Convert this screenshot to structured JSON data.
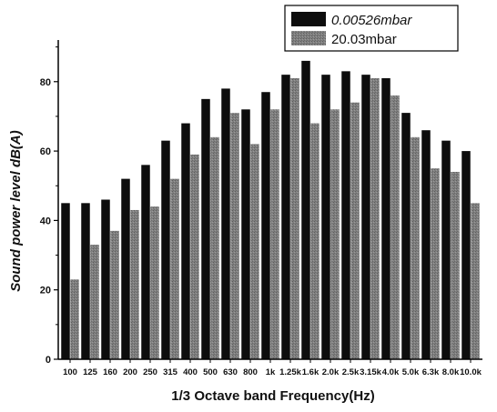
{
  "chart_data": {
    "type": "bar",
    "xlabel": "1/3 Octave band Frequency(Hz)",
    "ylabel": "Sound power level dB(A)",
    "ylim": [
      0,
      92
    ],
    "yticks": [
      0,
      20,
      40,
      60,
      80
    ],
    "grid": false,
    "legend_position": "top-right",
    "categories": [
      "100",
      "125",
      "160",
      "200",
      "250",
      "315",
      "400",
      "500",
      "630",
      "800",
      "1k",
      "1.25k",
      "1.6k",
      "2.0k",
      "2.5k",
      "3.15k",
      "4.0k",
      "5.0k",
      "6.3k",
      "8.0k",
      "10.0k"
    ],
    "series": [
      {
        "name": "0.00526mbar",
        "color": "#0d0d0d",
        "values": [
          45,
          45,
          46,
          52,
          56,
          63,
          68,
          75,
          78,
          72,
          77,
          82,
          86,
          82,
          83,
          82,
          81,
          71,
          66,
          63,
          60
        ]
      },
      {
        "name": "20.03mbar",
        "color": "#7f7f7f",
        "values": [
          23,
          33,
          37,
          43,
          44,
          52,
          59,
          64,
          71,
          62,
          72,
          81,
          68,
          72,
          74,
          81,
          76,
          64,
          55,
          54,
          45
        ]
      }
    ]
  }
}
